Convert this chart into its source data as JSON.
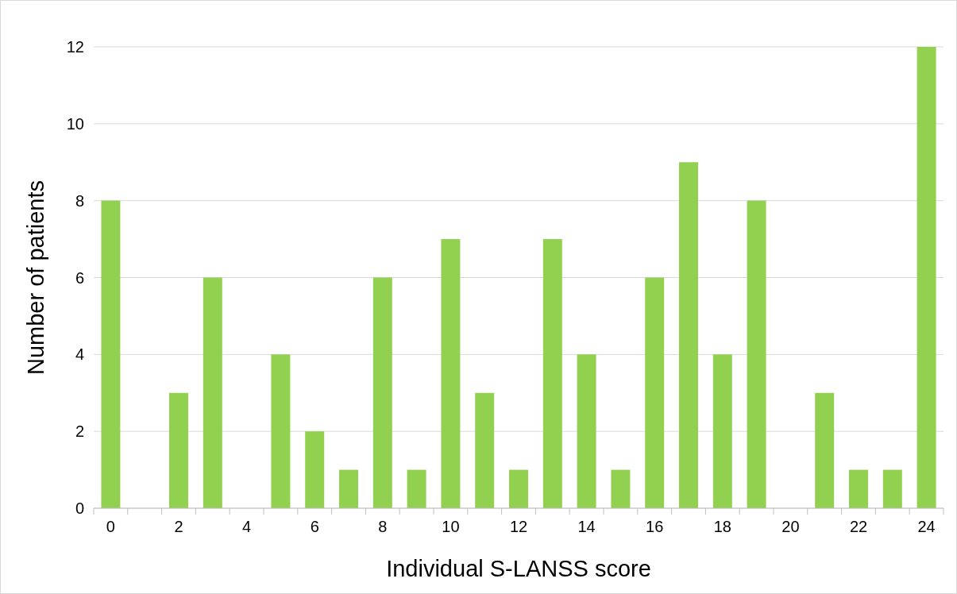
{
  "chart_data": {
    "type": "bar",
    "xlabel": "Individual S-LANSS score",
    "ylabel": "Number of patients",
    "x": [
      0,
      1,
      2,
      3,
      4,
      5,
      6,
      7,
      8,
      9,
      10,
      11,
      12,
      13,
      14,
      15,
      16,
      17,
      18,
      19,
      20,
      21,
      22,
      23,
      24
    ],
    "values": [
      8,
      0,
      3,
      6,
      0,
      4,
      2,
      1,
      6,
      1,
      7,
      3,
      1,
      7,
      4,
      1,
      6,
      9,
      4,
      8,
      0,
      3,
      1,
      1,
      12
    ],
    "color": "#92d050",
    "xlim": [
      -0.5,
      24.5
    ],
    "xticks": [
      0,
      2,
      4,
      6,
      8,
      10,
      12,
      14,
      16,
      18,
      20,
      22,
      24
    ],
    "ylim": [
      0,
      12
    ],
    "yticks": [
      0,
      2,
      4,
      6,
      8,
      10,
      12
    ],
    "grid": "y"
  }
}
